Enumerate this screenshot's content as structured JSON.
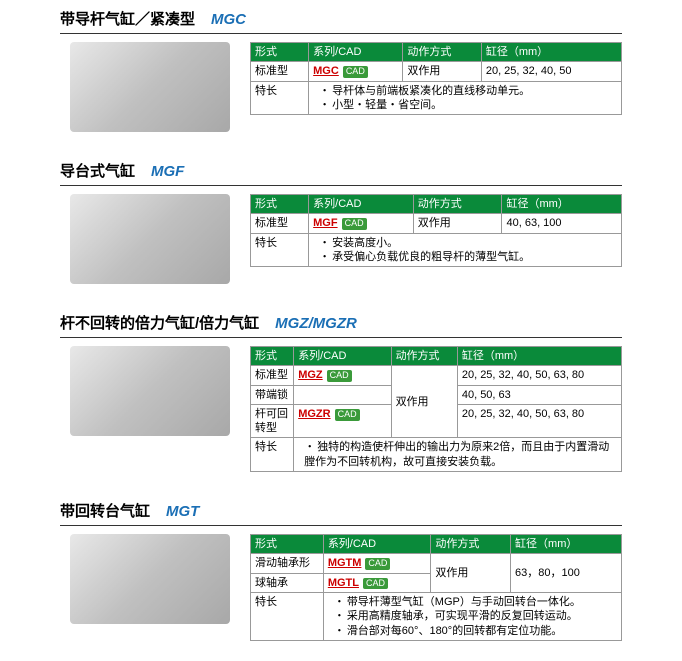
{
  "colors": {
    "header_bg": "#0a8a3a",
    "header_fg": "#ffffff",
    "border": "#999999",
    "link": "#cc0000",
    "title_model": "#1b6fb5"
  },
  "headers": {
    "form": "形式",
    "series": "系列/CAD",
    "action": "动作方式",
    "bore": "缸径（mm）",
    "feature": "特长"
  },
  "sections": [
    {
      "title_cn": "带导杆气缸／紧凑型",
      "title_model": "MGC",
      "rows": [
        {
          "form": "标准型",
          "series": "MGC",
          "cad": true,
          "action": "双作用",
          "bore": "20, 25, 32, 40, 50"
        }
      ],
      "features": [
        "导杆体与前端板紧凑化的直线移动单元。",
        "小型・轻量・省空间。"
      ]
    },
    {
      "title_cn": "导台式气缸",
      "title_model": "MGF",
      "rows": [
        {
          "form": "标准型",
          "series": "MGF",
          "cad": true,
          "action": "双作用",
          "bore": "40, 63, 100"
        }
      ],
      "features": [
        "安装高度小。",
        "承受偏心负载优良的粗导杆的薄型气缸。"
      ]
    },
    {
      "title_cn": "杆不回转的倍力气缸/倍力气缸",
      "title_model": "MGZ/MGZR",
      "action_shared": "双作用",
      "rows": [
        {
          "form": "标准型",
          "series": "MGZ",
          "cad": true,
          "bore": "20, 25, 32, 40, 50, 63, 80"
        },
        {
          "form": "带端锁",
          "series": "",
          "cad": false,
          "bore": "40, 50, 63"
        },
        {
          "form": "杆可回转型",
          "series": "MGZR",
          "cad": true,
          "bore": "20, 25, 32, 40, 50, 63, 80"
        }
      ],
      "features": [
        "独特的构造使杆伸出的输出力为原来2倍，而且由于内置滑动膛作为不回转机构，故可直接安装负载。"
      ]
    },
    {
      "title_cn": "带回转台气缸",
      "title_model": "MGT",
      "action_shared": "双作用",
      "bore_shared": "63，80，100",
      "rows": [
        {
          "form": "滑动轴承形",
          "series": "MGTM",
          "cad": true
        },
        {
          "form": "球轴承",
          "series": "MGTL",
          "cad": true
        }
      ],
      "features": [
        "带导杆薄型气缸（MGP）与手动回转台一体化。",
        "采用高精度轴承，可实现平滑的反复回转运动。",
        "滑台部对每60°、180°的回转都有定位功能。"
      ]
    }
  ]
}
